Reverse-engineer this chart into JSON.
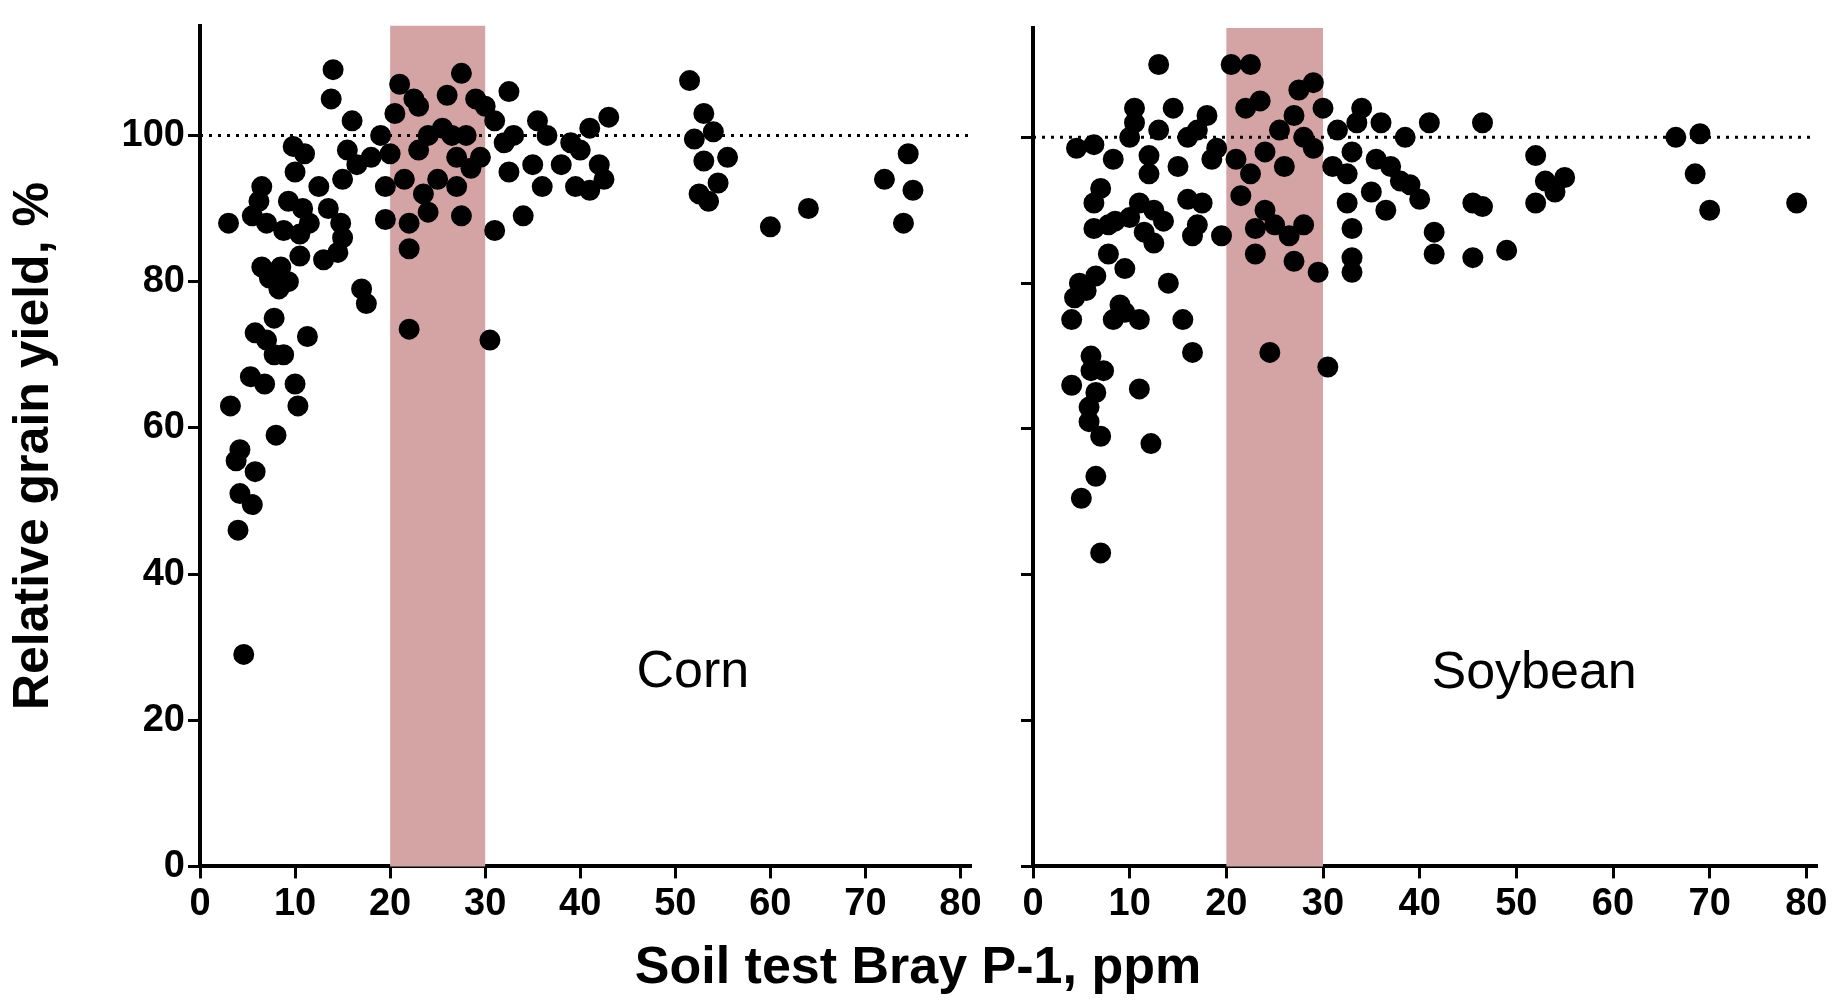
{
  "chart_data": [
    {
      "type": "scatter",
      "ylabel": "Relative grain yield, %",
      "xlabel": "Soil test Bray P-1, ppm",
      "annotations": [
        "Corn"
      ],
      "xlim": [
        0,
        81
      ],
      "ylim": [
        0,
        115
      ],
      "xticks": [
        0,
        10,
        20,
        30,
        40,
        50,
        60,
        70,
        80
      ],
      "yticks": [
        0,
        20,
        40,
        60,
        80,
        100
      ],
      "grid": false,
      "marker": "circle",
      "bands": [
        {
          "axis": "x",
          "from": 20,
          "to": 30,
          "color": "#d4a3a3"
        }
      ],
      "ref_lines": [
        {
          "axis": "y",
          "value": 100,
          "line_style": "dotted",
          "color": "#000000"
        }
      ],
      "series": [
        {
          "color": "#000000",
          "x": [
            3,
            3.2,
            3.8,
            4.2,
            4.2,
            4,
            4.6,
            5.5,
            5.5,
            5.8,
            5.3,
            5.8,
            6.5,
            6.2,
            6.5,
            6.8,
            7,
            7,
            7.3,
            7.8,
            7.8,
            8,
            8.3,
            8.5,
            8.8,
            8.8,
            9.3,
            9.3,
            9.8,
            10,
            10,
            10.3,
            10.5,
            10.5,
            10.8,
            11,
            11.3,
            11.5,
            12.5,
            13,
            13.5,
            13.8,
            14,
            14.5,
            14.8,
            15,
            15,
            15.5,
            16,
            16.5,
            17,
            17.5,
            18,
            19,
            19.5,
            19.5,
            20,
            20.5,
            21,
            21.5,
            22,
            22,
            22,
            22.5,
            23,
            23,
            23.5,
            24,
            24,
            25,
            25.5,
            26,
            26.5,
            27,
            27,
            27.5,
            27.5,
            28,
            28.5,
            29,
            29.5,
            30,
            30.5,
            31,
            31,
            32,
            32.5,
            32.5,
            33,
            34,
            35,
            35.5,
            36,
            36.5,
            38,
            39,
            39.5,
            40,
            41,
            41,
            42,
            42.5,
            43,
            51.5,
            52,
            52.5,
            53,
            53,
            53.5,
            54,
            54.5,
            55.5,
            60,
            64,
            72,
            74,
            74.5,
            75
          ],
          "values": [
            88,
            63,
            55.5,
            57,
            51,
            46,
            29,
            89,
            49.5,
            54,
            67,
            73,
            93,
            91,
            82,
            66,
            72,
            88,
            80.5,
            75,
            70,
            59,
            79,
            82,
            70,
            87,
            80,
            91,
            98.5,
            95,
            66,
            63,
            83.5,
            86.5,
            90,
            97.5,
            72.5,
            88,
            93,
            83,
            90,
            105,
            109,
            84,
            88,
            86,
            94,
            98,
            102,
            96,
            79,
            77,
            97,
            100,
            93,
            88.5,
            97.5,
            103,
            107,
            94,
            73.5,
            84.5,
            88,
            105,
            104,
            98,
            92,
            100,
            89.5,
            94,
            101,
            105.5,
            100,
            97,
            93,
            89,
            108.5,
            100,
            95.5,
            105,
            97,
            104,
            72,
            87,
            102,
            99,
            106,
            95,
            100,
            89,
            96,
            102,
            93,
            100,
            96,
            99,
            93,
            98,
            101,
            92.5,
            96,
            94,
            102.5,
            107.5,
            99.5,
            92,
            96.5,
            103,
            91,
            100.5,
            93.5,
            97,
            87.5,
            90,
            94,
            88,
            97.5,
            92.5
          ]
        }
      ]
    },
    {
      "type": "scatter",
      "annotations": [
        "Soybean"
      ],
      "xlim": [
        0,
        81
      ],
      "ylim": [
        0,
        115
      ],
      "xticks": [
        0,
        10,
        20,
        30,
        40,
        50,
        60,
        70,
        80
      ],
      "yticks": [
        0,
        20,
        40,
        60,
        80,
        100
      ],
      "tick_labels": "x",
      "grid": false,
      "marker": "circle",
      "bands": [
        {
          "axis": "x",
          "from": 20,
          "to": 30,
          "color": "#d4a3a3"
        }
      ],
      "ref_lines": [
        {
          "axis": "y",
          "value": 100,
          "line_style": "dotted",
          "color": "#000000"
        }
      ],
      "series": [
        {
          "color": "#000000",
          "x": [
            4,
            4,
            4.3,
            4.5,
            4.8,
            5,
            5.5,
            5.8,
            5.8,
            6,
            6,
            6.3,
            6.3,
            6.3,
            6.5,
            6.5,
            6.5,
            7,
            7,
            7,
            7.3,
            7.8,
            7.8,
            8.3,
            8.3,
            8.5,
            9,
            9.5,
            9.5,
            10,
            10,
            10.5,
            10.5,
            11,
            11,
            11,
            11.5,
            12,
            12,
            12.2,
            12.5,
            12.5,
            13,
            13,
            13.5,
            14,
            14.5,
            15,
            15.5,
            16,
            16,
            16.5,
            16.5,
            17,
            17,
            17.5,
            18,
            18.5,
            19,
            19.5,
            20.5,
            21,
            21.5,
            22,
            22.5,
            22.5,
            23,
            23,
            23.5,
            24,
            24,
            24.5,
            25,
            25.5,
            26,
            26.5,
            27,
            27,
            27.5,
            28,
            28,
            29,
            29,
            29.5,
            30,
            30.5,
            31,
            31.5,
            32.5,
            32.5,
            33,
            33,
            33,
            33,
            33.5,
            34,
            35,
            35.5,
            36,
            36.5,
            37,
            38,
            38.5,
            39,
            40,
            41,
            41.5,
            41.5,
            45.5,
            45.5,
            46.5,
            46.5,
            49,
            52,
            52,
            53,
            54,
            55,
            66.5,
            68.5,
            69,
            70,
            79
          ],
          "values": [
            75,
            66,
            78,
            98.5,
            80,
            50.5,
            79,
            63,
            61,
            70,
            68,
            99,
            91,
            87.5,
            81,
            65,
            53.5,
            93,
            59,
            43,
            68,
            88,
            84,
            97,
            75,
            88.5,
            77,
            82,
            76,
            89,
            100,
            104,
            102,
            91,
            75,
            65.5,
            87,
            95,
            97.5,
            58,
            85.5,
            90,
            110,
            101,
            88.5,
            80,
            104,
            96,
            75,
            91.5,
            100,
            70.5,
            86.5,
            88,
            101,
            91,
            103,
            97,
            98.5,
            86.5,
            110,
            97,
            92,
            104,
            110,
            95,
            87.5,
            84,
            105,
            98,
            90,
            70.5,
            88,
            101,
            96,
            86.5,
            103,
            83,
            106.5,
            100,
            88,
            98.5,
            107.5,
            81.5,
            104,
            68.5,
            96,
            101,
            95,
            91,
            87.5,
            83.5,
            81.5,
            98,
            102,
            104,
            92.5,
            97,
            102,
            90,
            96,
            94,
            100,
            93.5,
            91.5,
            102,
            87,
            84,
            91,
            83.5,
            90.5,
            102,
            84.5,
            97.5,
            91,
            94,
            92.5,
            94.5,
            100,
            95,
            100.5,
            90,
            91
          ]
        }
      ]
    }
  ]
}
